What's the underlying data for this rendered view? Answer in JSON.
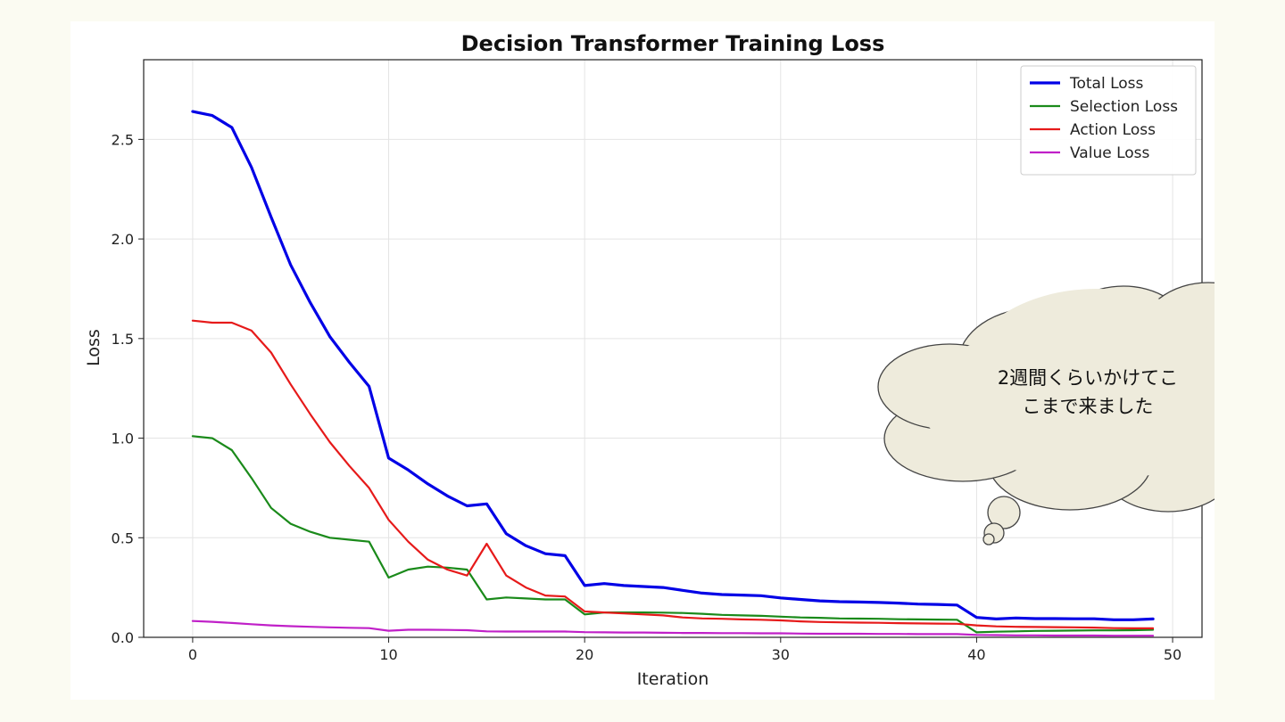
{
  "chart_data": {
    "type": "line",
    "title": "Decision Transformer Training Loss",
    "xlabel": "Iteration",
    "ylabel": "Loss",
    "xlim": [
      -2.5,
      51.5
    ],
    "ylim": [
      0,
      2.9
    ],
    "xticks": [
      0,
      10,
      20,
      30,
      40,
      50
    ],
    "yticks": [
      0.0,
      0.5,
      1.0,
      1.5,
      2.0,
      2.5
    ],
    "ytick_labels": [
      "0.0",
      "0.5",
      "1.0",
      "1.5",
      "2.0",
      "2.5"
    ],
    "grid": true,
    "legend_position": "top-right",
    "x": [
      0,
      1,
      2,
      3,
      4,
      5,
      6,
      7,
      8,
      9,
      10,
      11,
      12,
      13,
      14,
      15,
      16,
      17,
      18,
      19,
      20,
      21,
      22,
      23,
      24,
      25,
      26,
      27,
      28,
      29,
      30,
      31,
      32,
      33,
      34,
      35,
      36,
      37,
      38,
      39,
      40,
      41,
      42,
      43,
      44,
      45,
      46,
      47,
      48,
      49
    ],
    "series": [
      {
        "name": "Total Loss",
        "color": "#0000e6",
        "width": 3.2,
        "values": [
          2.64,
          2.62,
          2.56,
          2.36,
          2.11,
          1.87,
          1.68,
          1.51,
          1.38,
          1.26,
          0.9,
          0.84,
          0.77,
          0.71,
          0.66,
          0.67,
          0.52,
          0.46,
          0.42,
          0.41,
          0.26,
          0.27,
          0.26,
          0.255,
          0.25,
          0.236,
          0.222,
          0.215,
          0.212,
          0.209,
          0.198,
          0.19,
          0.183,
          0.179,
          0.177,
          0.175,
          0.172,
          0.167,
          0.165,
          0.162,
          0.1,
          0.092,
          0.097,
          0.094,
          0.094,
          0.093,
          0.093,
          0.088,
          0.088,
          0.092
        ]
      },
      {
        "name": "Selection Loss",
        "color": "#1a8a1a",
        "width": 2.2,
        "values": [
          1.01,
          1.0,
          0.94,
          0.8,
          0.65,
          0.57,
          0.53,
          0.5,
          0.49,
          0.48,
          0.3,
          0.34,
          0.355,
          0.35,
          0.34,
          0.19,
          0.2,
          0.195,
          0.19,
          0.19,
          0.115,
          0.125,
          0.125,
          0.125,
          0.124,
          0.122,
          0.118,
          0.113,
          0.11,
          0.108,
          0.104,
          0.1,
          0.098,
          0.095,
          0.094,
          0.093,
          0.091,
          0.09,
          0.089,
          0.088,
          0.025,
          0.028,
          0.03,
          0.032,
          0.033,
          0.034,
          0.035,
          0.035,
          0.036,
          0.038
        ]
      },
      {
        "name": "Action Loss",
        "color": "#e61a1a",
        "width": 2.2,
        "values": [
          1.59,
          1.58,
          1.58,
          1.54,
          1.43,
          1.27,
          1.12,
          0.98,
          0.86,
          0.75,
          0.59,
          0.48,
          0.39,
          0.34,
          0.31,
          0.47,
          0.31,
          0.25,
          0.21,
          0.205,
          0.13,
          0.125,
          0.12,
          0.115,
          0.11,
          0.1,
          0.095,
          0.093,
          0.09,
          0.088,
          0.085,
          0.08,
          0.077,
          0.075,
          0.074,
          0.073,
          0.071,
          0.07,
          0.069,
          0.068,
          0.06,
          0.055,
          0.053,
          0.052,
          0.051,
          0.05,
          0.049,
          0.046,
          0.045,
          0.045
        ]
      },
      {
        "name": "Value Loss",
        "color": "#c020c8",
        "width": 2.2,
        "values": [
          0.082,
          0.078,
          0.072,
          0.066,
          0.06,
          0.056,
          0.053,
          0.05,
          0.048,
          0.046,
          0.033,
          0.038,
          0.038,
          0.037,
          0.036,
          0.03,
          0.029,
          0.029,
          0.029,
          0.029,
          0.026,
          0.025,
          0.024,
          0.024,
          0.023,
          0.022,
          0.022,
          0.021,
          0.021,
          0.02,
          0.02,
          0.019,
          0.018,
          0.018,
          0.018,
          0.017,
          0.017,
          0.016,
          0.016,
          0.016,
          0.012,
          0.011,
          0.01,
          0.01,
          0.009,
          0.009,
          0.009,
          0.008,
          0.008,
          0.008
        ]
      }
    ]
  },
  "callout": {
    "lines": [
      "2週間くらいかけてこ",
      "こまで来ました"
    ],
    "fill": "#eeebdc",
    "stroke": "#444444"
  }
}
